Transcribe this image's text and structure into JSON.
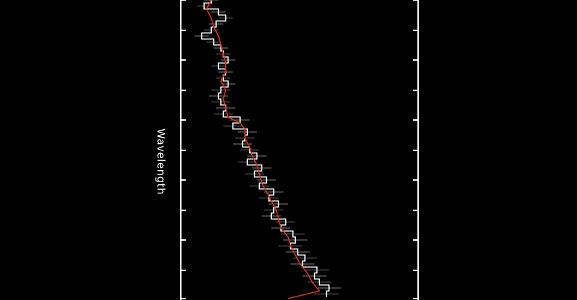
{
  "chart_data": {
    "type": "line",
    "orientation": "rotated-90",
    "axis_label": "Wavelength",
    "background": "#000000",
    "colors": {
      "axes": "#ffffff",
      "data": "#ffffff",
      "error_bars": "#aaaaaa",
      "model": "#e03020"
    },
    "wavelength_range": [
      0,
      100
    ],
    "flux_range": [
      0,
      100
    ],
    "major_ticks": [
      0,
      10,
      20,
      30,
      40,
      50,
      60,
      70,
      80,
      90,
      100
    ],
    "series": [
      {
        "kind": "binned-data-with-errors",
        "wavelength": [
          0,
          2,
          4,
          6,
          8,
          10,
          12,
          14,
          16,
          18,
          20,
          22,
          24,
          26,
          28,
          30,
          32,
          34,
          36,
          38,
          40,
          42,
          44,
          46,
          48,
          50,
          52,
          54,
          56,
          58,
          60,
          62,
          64,
          66,
          68,
          70,
          72,
          74,
          76,
          78,
          80,
          82,
          84,
          86,
          88,
          90,
          92,
          94,
          96,
          98
        ],
        "flux": [
          8,
          5,
          11,
          14,
          10,
          8,
          4,
          9,
          12,
          13,
          15,
          11,
          14,
          13,
          15,
          12,
          11,
          12,
          14,
          13,
          20,
          17,
          23,
          22,
          21,
          24,
          27,
          23,
          29,
          26,
          31,
          28,
          34,
          32,
          36,
          34,
          33,
          39,
          37,
          42,
          43,
          41,
          44,
          47,
          46,
          52,
          51,
          53,
          57,
          56
        ],
        "error": [
          3,
          3,
          3,
          3,
          3,
          3,
          3,
          3,
          3,
          3,
          3,
          3,
          3,
          3,
          3,
          4,
          4,
          4,
          4,
          4,
          4,
          4,
          4,
          4,
          4,
          4,
          4,
          4,
          4,
          4,
          4,
          4,
          4,
          4,
          4,
          4,
          4,
          4,
          4,
          5,
          5,
          5,
          5,
          5,
          5,
          5,
          5,
          5,
          5,
          5
        ]
      },
      {
        "kind": "model",
        "wavelength": [
          0,
          3,
          6,
          9,
          12,
          15,
          18,
          21,
          24,
          27,
          30,
          33,
          36,
          39,
          41,
          43,
          46,
          49,
          52,
          55,
          58,
          61,
          64,
          67,
          70,
          73,
          76,
          79,
          82,
          85,
          88,
          91,
          94,
          97,
          99.5
        ],
        "flux": [
          8,
          6,
          8,
          9,
          11,
          12,
          13,
          14,
          14,
          12,
          14,
          13,
          14,
          15,
          20,
          22,
          22,
          24,
          25,
          27,
          28,
          29,
          31,
          33,
          35,
          36,
          37,
          40,
          41,
          43,
          45,
          48,
          50,
          53,
          40
        ]
      }
    ]
  }
}
